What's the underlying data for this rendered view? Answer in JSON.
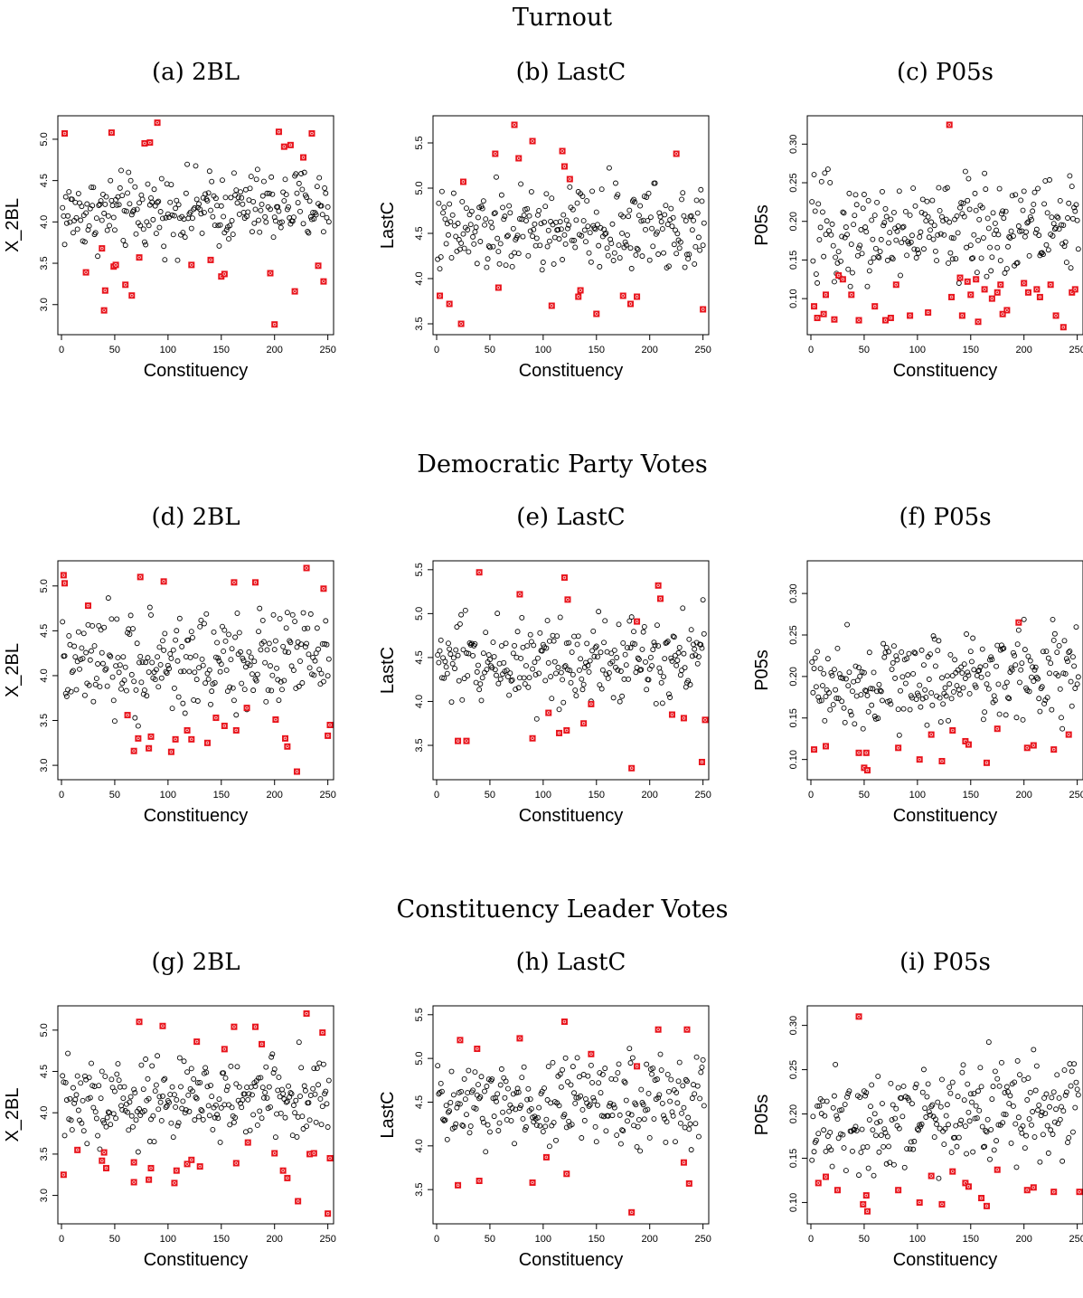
{
  "sections": [
    "Turnout",
    "Democratic Party Votes",
    "Constituency Leader Votes"
  ],
  "colors": {
    "normal": "#000000",
    "flagged": "#e8141c"
  },
  "chart_data": [
    {
      "type": "scatter",
      "subtitle": "(a) 2BL",
      "xlabel": "Constituency",
      "ylabel": "X_2BL",
      "xlim": [
        0,
        252
      ],
      "ylim": [
        2.68,
        5.24
      ],
      "xticks": [
        0,
        50,
        100,
        150,
        200,
        250
      ],
      "yticks": [
        3.0,
        3.5,
        4.0,
        4.5,
        5.0
      ],
      "ystep": 2.0,
      "ymean": 4.15,
      "yspread": 0.28,
      "flagged": [
        [
          3,
          5.07
        ],
        [
          23,
          3.39
        ],
        [
          38,
          3.68
        ],
        [
          40,
          2.93
        ],
        [
          41,
          3.17
        ],
        [
          47,
          5.08
        ],
        [
          49,
          3.46
        ],
        [
          51,
          3.48
        ],
        [
          60,
          3.24
        ],
        [
          66,
          3.11
        ],
        [
          73,
          3.57
        ],
        [
          78,
          4.95
        ],
        [
          83,
          4.96
        ],
        [
          90,
          5.2
        ],
        [
          122,
          3.48
        ],
        [
          140,
          3.54
        ],
        [
          150,
          3.34
        ],
        [
          153,
          3.37
        ],
        [
          196,
          3.38
        ],
        [
          200,
          2.76
        ],
        [
          204,
          5.09
        ],
        [
          209,
          4.91
        ],
        [
          215,
          4.93
        ],
        [
          219,
          3.16
        ],
        [
          227,
          4.78
        ],
        [
          235,
          5.07
        ],
        [
          241,
          3.47
        ],
        [
          246,
          3.28
        ]
      ]
    },
    {
      "type": "scatter",
      "subtitle": "(b) LastC",
      "xlabel": "Constituency",
      "ylabel": "LastC",
      "xlim": [
        0,
        252
      ],
      "ylim": [
        3.42,
        5.76
      ],
      "xticks": [
        0,
        50,
        100,
        150,
        200,
        250
      ],
      "yticks": [
        3.5,
        4.0,
        4.5,
        5.0,
        5.5
      ],
      "ystep": 1,
      "ymean": 4.55,
      "yspread": 0.3,
      "flagged": [
        [
          3,
          3.81
        ],
        [
          12,
          3.72
        ],
        [
          23,
          3.5
        ],
        [
          25,
          5.07
        ],
        [
          55,
          5.38
        ],
        [
          58,
          3.9
        ],
        [
          73,
          5.7
        ],
        [
          77,
          5.33
        ],
        [
          90,
          5.52
        ],
        [
          108,
          3.7
        ],
        [
          118,
          5.41
        ],
        [
          120,
          5.24
        ],
        [
          125,
          5.1
        ],
        [
          133,
          3.8
        ],
        [
          135,
          3.87
        ],
        [
          150,
          3.61
        ],
        [
          175,
          3.81
        ],
        [
          182,
          3.72
        ],
        [
          188,
          3.8
        ],
        [
          225,
          5.38
        ],
        [
          250,
          3.66
        ]
      ]
    },
    {
      "type": "scatter",
      "subtitle": "(c) P05s",
      "xlabel": "Constituency",
      "ylabel": "P05s",
      "xlim": [
        0,
        252
      ],
      "ylim": [
        0.058,
        0.332
      ],
      "xticks": [
        0,
        50,
        100,
        150,
        200,
        250
      ],
      "yticks": [
        0.1,
        0.15,
        0.2,
        0.25,
        0.3
      ],
      "ystep": 1,
      "ymean": 0.19,
      "yspread": 0.04,
      "flagged": [
        [
          3,
          0.09
        ],
        [
          6,
          0.075
        ],
        [
          12,
          0.08
        ],
        [
          14,
          0.105
        ],
        [
          22,
          0.073
        ],
        [
          26,
          0.13
        ],
        [
          30,
          0.125
        ],
        [
          38,
          0.105
        ],
        [
          45,
          0.072
        ],
        [
          60,
          0.09
        ],
        [
          70,
          0.072
        ],
        [
          75,
          0.075
        ],
        [
          80,
          0.118
        ],
        [
          93,
          0.078
        ],
        [
          110,
          0.082
        ],
        [
          130,
          0.325
        ],
        [
          132,
          0.102
        ],
        [
          140,
          0.127
        ],
        [
          142,
          0.078
        ],
        [
          147,
          0.122
        ],
        [
          150,
          0.105
        ],
        [
          155,
          0.125
        ],
        [
          157,
          0.07
        ],
        [
          163,
          0.112
        ],
        [
          170,
          0.1
        ],
        [
          175,
          0.108
        ],
        [
          178,
          0.118
        ],
        [
          180,
          0.08
        ],
        [
          184,
          0.085
        ],
        [
          200,
          0.12
        ],
        [
          204,
          0.108
        ],
        [
          212,
          0.112
        ],
        [
          215,
          0.102
        ],
        [
          225,
          0.118
        ],
        [
          230,
          0.078
        ],
        [
          237,
          0.063
        ],
        [
          245,
          0.108
        ],
        [
          248,
          0.112
        ]
      ]
    },
    {
      "type": "scatter",
      "subtitle": "(d) 2BL",
      "xlabel": "Constituency",
      "ylabel": "X_2BL",
      "xlim": [
        0,
        252
      ],
      "ylim": [
        2.88,
        5.24
      ],
      "xticks": [
        0,
        50,
        100,
        150,
        200,
        250
      ],
      "yticks": [
        3.0,
        3.5,
        4.0,
        4.5,
        5.0
      ],
      "ystep": 1,
      "ymean": 4.15,
      "yspread": 0.35,
      "flagged": [
        [
          2,
          5.12
        ],
        [
          3,
          5.03
        ],
        [
          25,
          4.78
        ],
        [
          62,
          3.56
        ],
        [
          68,
          3.16
        ],
        [
          72,
          3.3
        ],
        [
          74,
          5.1
        ],
        [
          82,
          3.19
        ],
        [
          84,
          3.32
        ],
        [
          96,
          5.05
        ],
        [
          103,
          3.15
        ],
        [
          107,
          3.29
        ],
        [
          118,
          3.39
        ],
        [
          122,
          3.29
        ],
        [
          137,
          3.25
        ],
        [
          145,
          3.53
        ],
        [
          153,
          3.44
        ],
        [
          162,
          5.04
        ],
        [
          164,
          3.39
        ],
        [
          174,
          3.64
        ],
        [
          182,
          5.04
        ],
        [
          201,
          3.51
        ],
        [
          210,
          3.3
        ],
        [
          212,
          3.21
        ],
        [
          221,
          2.93
        ],
        [
          230,
          5.2
        ],
        [
          246,
          4.97
        ],
        [
          250,
          3.33
        ],
        [
          252,
          3.45
        ]
      ]
    },
    {
      "type": "scatter",
      "subtitle": "(e) LastC",
      "xlabel": "Constituency",
      "ylabel": "LastC",
      "xlim": [
        0,
        252
      ],
      "ylim": [
        3.15,
        5.56
      ],
      "xticks": [
        0,
        50,
        100,
        150,
        200,
        250
      ],
      "yticks": [
        3.5,
        4.0,
        4.5,
        5.0,
        5.5
      ],
      "ystep": 1,
      "ymean": 4.5,
      "yspread": 0.32,
      "flagged": [
        [
          20,
          3.55
        ],
        [
          28,
          3.55
        ],
        [
          40,
          5.47
        ],
        [
          78,
          5.22
        ],
        [
          90,
          3.58
        ],
        [
          105,
          3.87
        ],
        [
          115,
          3.64
        ],
        [
          120,
          5.41
        ],
        [
          122,
          3.67
        ],
        [
          123,
          5.16
        ],
        [
          138,
          3.75
        ],
        [
          145,
          3.97
        ],
        [
          183,
          3.24
        ],
        [
          188,
          4.91
        ],
        [
          208,
          5.32
        ],
        [
          210,
          5.17
        ],
        [
          221,
          3.85
        ],
        [
          232,
          3.81
        ],
        [
          249,
          3.31
        ],
        [
          252,
          3.79
        ]
      ]
    },
    {
      "type": "scatter",
      "subtitle": "(f) P05s",
      "xlabel": "Constituency",
      "ylabel": "P05s",
      "xlim": [
        0,
        252
      ],
      "ylim": [
        0.08,
        0.335
      ],
      "xticks": [
        0,
        50,
        100,
        150,
        200,
        250
      ],
      "yticks": [
        0.1,
        0.15,
        0.2,
        0.25,
        0.3
      ],
      "ystep": 1,
      "ymean": 0.2,
      "yspread": 0.035,
      "flagged": [
        [
          3,
          0.112
        ],
        [
          14,
          0.116
        ],
        [
          45,
          0.108
        ],
        [
          50,
          0.09
        ],
        [
          52,
          0.108
        ],
        [
          53,
          0.087
        ],
        [
          82,
          0.114
        ],
        [
          102,
          0.1
        ],
        [
          113,
          0.13
        ],
        [
          123,
          0.098
        ],
        [
          133,
          0.135
        ],
        [
          145,
          0.122
        ],
        [
          148,
          0.118
        ],
        [
          165,
          0.096
        ],
        [
          175,
          0.137
        ],
        [
          195,
          0.265
        ],
        [
          203,
          0.114
        ],
        [
          209,
          0.117
        ],
        [
          228,
          0.112
        ],
        [
          242,
          0.13
        ]
      ]
    },
    {
      "type": "scatter",
      "subtitle": "(g) 2BL",
      "xlabel": "Constituency",
      "ylabel": "X_2BL",
      "xlim": [
        0,
        252
      ],
      "ylim": [
        2.7,
        5.25
      ],
      "xticks": [
        0,
        50,
        100,
        150,
        200,
        250
      ],
      "yticks": [
        3.0,
        3.5,
        4.0,
        4.5,
        5.0
      ],
      "ystep": 1,
      "ymean": 4.15,
      "yspread": 0.33,
      "flagged": [
        [
          2,
          3.25
        ],
        [
          15,
          3.55
        ],
        [
          38,
          3.42
        ],
        [
          40,
          3.52
        ],
        [
          42,
          3.33
        ],
        [
          68,
          3.16
        ],
        [
          68,
          3.4
        ],
        [
          73,
          5.1
        ],
        [
          82,
          3.19
        ],
        [
          84,
          3.33
        ],
        [
          95,
          5.05
        ],
        [
          106,
          3.15
        ],
        [
          108,
          3.3
        ],
        [
          118,
          3.38
        ],
        [
          122,
          3.43
        ],
        [
          127,
          4.86
        ],
        [
          130,
          3.35
        ],
        [
          153,
          4.77
        ],
        [
          162,
          5.04
        ],
        [
          164,
          3.39
        ],
        [
          175,
          3.64
        ],
        [
          182,
          5.04
        ],
        [
          188,
          4.83
        ],
        [
          200,
          3.51
        ],
        [
          208,
          3.3
        ],
        [
          212,
          3.21
        ],
        [
          222,
          2.93
        ],
        [
          230,
          5.2
        ],
        [
          233,
          3.5
        ],
        [
          237,
          3.51
        ],
        [
          245,
          4.97
        ],
        [
          252,
          3.45
        ],
        [
          250,
          2.78
        ]
      ]
    },
    {
      "type": "scatter",
      "subtitle": "(h) LastC",
      "xlabel": "Constituency",
      "ylabel": "LastC",
      "xlim": [
        0,
        252
      ],
      "ylim": [
        3.15,
        5.56
      ],
      "xticks": [
        0,
        50,
        100,
        150,
        200,
        250
      ],
      "yticks": [
        3.5,
        4.0,
        4.5,
        5.0,
        5.5
      ],
      "ystep": 1,
      "ymean": 4.5,
      "yspread": 0.32,
      "flagged": [
        [
          20,
          3.55
        ],
        [
          22,
          5.21
        ],
        [
          38,
          5.11
        ],
        [
          40,
          3.6
        ],
        [
          78,
          5.23
        ],
        [
          90,
          3.58
        ],
        [
          103,
          3.87
        ],
        [
          120,
          5.42
        ],
        [
          122,
          3.68
        ],
        [
          145,
          5.05
        ],
        [
          183,
          3.24
        ],
        [
          188,
          4.91
        ],
        [
          208,
          5.33
        ],
        [
          232,
          3.81
        ],
        [
          235,
          5.33
        ],
        [
          237,
          3.57
        ]
      ]
    },
    {
      "type": "scatter",
      "subtitle": "(i) P05s",
      "xlabel": "Constituency",
      "ylabel": "P05s",
      "xlim": [
        0,
        252
      ],
      "ylim": [
        0.08,
        0.318
      ],
      "xticks": [
        0,
        50,
        100,
        150,
        200,
        250
      ],
      "yticks": [
        0.1,
        0.15,
        0.2,
        0.25,
        0.3
      ],
      "ystep": 1,
      "ymean": 0.2,
      "yspread": 0.035,
      "flagged": [
        [
          7,
          0.122
        ],
        [
          14,
          0.129
        ],
        [
          25,
          0.114
        ],
        [
          45,
          0.31
        ],
        [
          49,
          0.098
        ],
        [
          52,
          0.108
        ],
        [
          53,
          0.09
        ],
        [
          82,
          0.114
        ],
        [
          102,
          0.1
        ],
        [
          113,
          0.13
        ],
        [
          123,
          0.098
        ],
        [
          133,
          0.135
        ],
        [
          145,
          0.122
        ],
        [
          148,
          0.118
        ],
        [
          160,
          0.105
        ],
        [
          165,
          0.096
        ],
        [
          175,
          0.137
        ],
        [
          203,
          0.114
        ],
        [
          209,
          0.117
        ],
        [
          228,
          0.112
        ],
        [
          252,
          0.112
        ]
      ]
    }
  ]
}
